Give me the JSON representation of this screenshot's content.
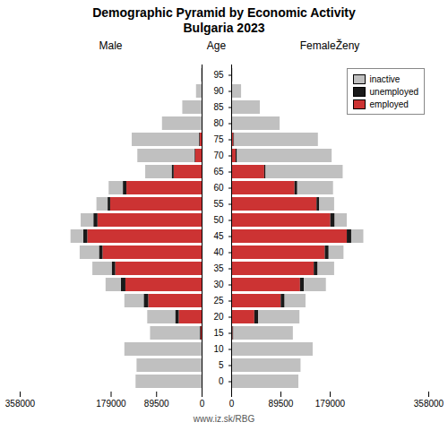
{
  "chart_data": {
    "type": "bar",
    "orientation": "horizontal",
    "stacked": true,
    "title": "Demographic Pyramid by Economic Activity\nBulgaria 2023",
    "ylabel": "Age",
    "annotations": [
      "www.iz.sk/RBG"
    ],
    "categories": [
      0,
      5,
      10,
      15,
      20,
      25,
      30,
      35,
      40,
      45,
      50,
      55,
      60,
      65,
      70,
      75,
      80,
      85,
      90,
      95
    ],
    "xlim": [
      0,
      358000
    ],
    "xticks": [
      0,
      89500,
      179000,
      358000
    ],
    "grid": false,
    "legend": "upper right",
    "panels": [
      {
        "title": "Male",
        "series": [
          {
            "name": "inactive",
            "color": "#C0C0C0",
            "values": [
              130000,
              128000,
              152000,
              98000,
              55000,
              38000,
              30000,
              38000,
              38000,
              25000,
              25000,
              22000,
              28000,
              52000,
              112000,
              132000,
              78000,
              38000,
              11000,
              1500
            ]
          },
          {
            "name": "unemployed",
            "color": "#1a1a1a",
            "values": [
              0,
              0,
              0,
              1500,
              7000,
              9000,
              9000,
              7000,
              7000,
              8000,
              8000,
              5000,
              7000,
              4000,
              1500,
              1500,
              0,
              0,
              0,
              0
            ]
          },
          {
            "name": "employed",
            "color": "#CC3333",
            "values": [
              0,
              0,
              0,
              2000,
              45000,
              105000,
              150000,
              170000,
              195000,
              225000,
              205000,
              180000,
              148000,
              55000,
              13000,
              4000,
              0,
              0,
              0,
              0
            ]
          }
        ]
      },
      {
        "title": "FemaleŽeny",
        "series": [
          {
            "name": "inactive",
            "color": "#C0C0C0",
            "values": [
              122000,
              126000,
              148000,
              108000,
              75000,
              38000,
              40000,
              30000,
              27000,
              22000,
              22000,
              27000,
              65000,
              140000,
              172000,
              152000,
              88000,
              52000,
              18000,
              2500
            ]
          },
          {
            "name": "unemployed",
            "color": "#1a1a1a",
            "values": [
              0,
              0,
              0,
              1500,
              7000,
              7000,
              7000,
              7000,
              7000,
              8000,
              8000,
              5000,
              5000,
              2500,
              2500,
              1500,
              0,
              0,
              0,
              0
            ]
          },
          {
            "name": "employed",
            "color": "#CC3333",
            "values": [
              0,
              0,
              0,
              2500,
              42000,
              90000,
              125000,
              150000,
              170000,
              210000,
              180000,
              155000,
              115000,
              60000,
              8000,
              4000,
              0,
              0,
              0,
              0
            ]
          }
        ]
      }
    ]
  }
}
